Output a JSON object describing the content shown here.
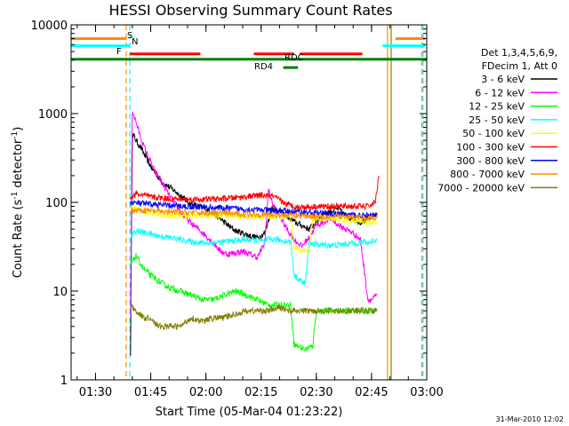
{
  "chart_data": {
    "type": "line",
    "title": "HESSI Observing Summary Count Rates",
    "xlabel": "Start Time (05-Mar-04 01:23:22)",
    "ylabel": "Count Rate (s",
    "ylabel_sup1": "-1",
    "ylabel_mid": " detector",
    "ylabel_sup2": "-1",
    "ylabel_end": ")",
    "y_scale": "log",
    "ylim": [
      1,
      10000
    ],
    "xlim": [
      "01:23:22",
      "03:00:00"
    ],
    "x_ticks": [
      "01:30",
      "01:45",
      "02:00",
      "02:15",
      "02:30",
      "02:45",
      "03:00"
    ],
    "y_ticks": [
      "1",
      "10",
      "100",
      "1000",
      "10000"
    ],
    "footer": "31-Mar-2010 12:02",
    "legend": {
      "header1": "Det 1,3,4,5,6,9,",
      "header2": "FDecim 1, Att 0",
      "placement": "right"
    },
    "series": [
      {
        "name": "3 - 6 keV",
        "color": "#000000",
        "x": [
          "01:39:30",
          "01:40:00",
          "01:41:00",
          "01:42:30",
          "01:44:00",
          "01:46:00",
          "01:48:00",
          "01:50:00",
          "01:52:00",
          "01:54:00",
          "01:56:00",
          "01:58:00",
          "02:00:00",
          "02:02:00",
          "02:04:00",
          "02:06:00",
          "02:08:00",
          "02:10:00",
          "02:12:00",
          "02:14:00",
          "02:16:00",
          "02:18:00",
          "02:20:00",
          "02:22:00",
          "02:24:00",
          "02:26:00",
          "02:28:00",
          "02:30:00",
          "02:32:00",
          "02:34:00",
          "02:36:00",
          "02:38:00",
          "02:40:00",
          "02:42:00",
          "02:44:00",
          "02:45:00",
          "02:46:30"
        ],
        "y": [
          2,
          600,
          500,
          400,
          300,
          220,
          170,
          150,
          130,
          110,
          95,
          90,
          85,
          75,
          65,
          55,
          48,
          45,
          42,
          40,
          45,
          90,
          80,
          70,
          60,
          55,
          50,
          60,
          75,
          80,
          85,
          70,
          65,
          60,
          65,
          70,
          75
        ]
      },
      {
        "name": "6 - 12 keV",
        "color": "#ff00ff",
        "x": [
          "01:39:30",
          "01:40:00",
          "01:41:00",
          "01:42:30",
          "01:44:00",
          "01:46:00",
          "01:48:00",
          "01:50:00",
          "01:52:00",
          "01:54:00",
          "01:56:00",
          "01:58:00",
          "02:00:00",
          "02:02:00",
          "02:04:00",
          "02:06:00",
          "02:08:00",
          "02:10:00",
          "02:12:00",
          "02:14:00",
          "02:16:00",
          "02:17:00",
          "02:18:00",
          "02:20:00",
          "02:22:00",
          "02:24:00",
          "02:26:00",
          "02:28:00",
          "02:30:00",
          "02:32:00",
          "02:34:00",
          "02:36:00",
          "02:38:00",
          "02:40:00",
          "02:42:00",
          "02:44:00",
          "02:45:00",
          "02:46:30"
        ],
        "y": [
          5,
          1100,
          800,
          500,
          350,
          230,
          170,
          120,
          90,
          70,
          58,
          50,
          42,
          35,
          28,
          26,
          27,
          28,
          26,
          24,
          35,
          140,
          100,
          70,
          50,
          38,
          32,
          40,
          55,
          60,
          65,
          55,
          50,
          45,
          38,
          8,
          8,
          9
        ]
      },
      {
        "name": "12 - 25 keV",
        "color": "#00ff00",
        "x": [
          "01:39:30",
          "01:41:00",
          "01:43:00",
          "01:45:00",
          "01:47:00",
          "01:50:00",
          "01:53:00",
          "01:56:00",
          "01:59:00",
          "02:02:00",
          "02:05:00",
          "02:08:00",
          "02:11:00",
          "02:14:00",
          "02:17:00",
          "02:19:00",
          "02:21:00",
          "02:23:00",
          "02:24:00",
          "02:27:00",
          "02:29:00",
          "02:30:00",
          "02:33:00",
          "02:36:00",
          "02:39:00",
          "02:42:00",
          "02:44:00",
          "02:45:00",
          "02:46:30"
        ],
        "y": [
          20,
          25,
          18,
          15,
          13,
          11,
          10,
          9,
          8,
          8,
          9,
          10,
          9,
          8,
          7,
          7,
          7,
          7,
          2.5,
          2.2,
          2.4,
          6,
          6,
          6,
          6,
          6,
          6,
          6,
          6
        ]
      },
      {
        "name": "25 - 50 keV",
        "color": "#00ffff",
        "x": [
          "01:39:30",
          "01:41:00",
          "01:44:00",
          "01:47:00",
          "01:50:00",
          "01:53:00",
          "01:56:00",
          "01:59:00",
          "02:02:00",
          "02:05:00",
          "02:08:00",
          "02:11:00",
          "02:14:00",
          "02:16:00",
          "02:17:00",
          "02:19:00",
          "02:21:00",
          "02:23:00",
          "02:24:00",
          "02:27:00",
          "02:28:00",
          "02:29:00",
          "02:32:00",
          "02:35:00",
          "02:38:00",
          "02:41:00",
          "02:43:00",
          "02:44:00",
          "02:45:00",
          "02:46:30"
        ],
        "y": [
          40,
          48,
          45,
          42,
          40,
          38,
          36,
          35,
          35,
          36,
          37,
          38,
          37,
          36,
          38,
          38,
          37,
          36,
          15,
          12,
          35,
          34,
          33,
          33,
          34,
          35,
          36,
          35,
          36,
          38
        ]
      },
      {
        "name": "50 - 100 keV",
        "color": "#ffff00",
        "x": [
          "01:39:30",
          "01:41:00",
          "01:45:00",
          "01:50:00",
          "01:55:00",
          "02:00:00",
          "02:05:00",
          "02:10:00",
          "02:15:00",
          "02:20:00",
          "02:23:00",
          "02:24:00",
          "02:28:00",
          "02:29:00",
          "02:35:00",
          "02:40:00",
          "02:45:00",
          "02:46:30"
        ],
        "y": [
          90,
          85,
          75,
          72,
          70,
          70,
          72,
          70,
          68,
          70,
          70,
          30,
          28,
          65,
          65,
          62,
          60,
          60
        ]
      },
      {
        "name": "100 - 300 keV",
        "color": "#ff0000",
        "x": [
          "01:39:30",
          "01:41:00",
          "01:45:00",
          "01:50:00",
          "01:55:00",
          "02:00:00",
          "02:05:00",
          "02:10:00",
          "02:15:00",
          "02:18:00",
          "02:22:00",
          "02:25:00",
          "02:30:00",
          "02:35:00",
          "02:40:00",
          "02:44:00",
          "02:46:00",
          "02:47:00"
        ],
        "y": [
          110,
          125,
          115,
          110,
          108,
          108,
          110,
          115,
          120,
          118,
          95,
          88,
          90,
          90,
          90,
          90,
          100,
          200
        ]
      },
      {
        "name": "300 - 800 keV",
        "color": "#0000ff",
        "x": [
          "01:39:30",
          "01:41:00",
          "01:45:00",
          "01:50:00",
          "01:55:00",
          "02:00:00",
          "02:05:00",
          "02:10:00",
          "02:15:00",
          "02:20:00",
          "02:25:00",
          "02:30:00",
          "02:35:00",
          "02:40:00",
          "02:45:00",
          "02:46:30"
        ],
        "y": [
          100,
          98,
          95,
          92,
          90,
          88,
          86,
          84,
          82,
          80,
          78,
          76,
          74,
          72,
          70,
          70
        ]
      },
      {
        "name": "800 - 7000 keV",
        "color": "#ff8c00",
        "x": [
          "01:39:30",
          "01:41:00",
          "01:45:00",
          "01:50:00",
          "01:55:00",
          "02:00:00",
          "02:05:00",
          "02:10:00",
          "02:15:00",
          "02:20:00",
          "02:25:00",
          "02:30:00",
          "02:35:00",
          "02:40:00",
          "02:45:00",
          "02:46:30"
        ],
        "y": [
          80,
          82,
          80,
          78,
          77,
          76,
          75,
          74,
          73,
          72,
          71,
          70,
          69,
          68,
          67,
          66
        ]
      },
      {
        "name": "7000 - 20000 keV",
        "color": "#808000",
        "x": [
          "01:39:30",
          "01:41:00",
          "01:43:00",
          "01:45:00",
          "01:47:00",
          "01:50:00",
          "01:53:00",
          "01:56:00",
          "01:59:00",
          "02:02:00",
          "02:05:00",
          "02:08:00",
          "02:11:00",
          "02:14:00",
          "02:17:00",
          "02:20:00",
          "02:23:00",
          "02:26:00",
          "02:29:00",
          "02:32:00",
          "02:35:00",
          "02:38:00",
          "02:41:00",
          "02:44:00",
          "02:46:30"
        ],
        "y": [
          7,
          6,
          5,
          5,
          4,
          4,
          4,
          5,
          4.5,
          5,
          5,
          5.5,
          6,
          6,
          6,
          6.5,
          6,
          6,
          6,
          6,
          6,
          6,
          6,
          6,
          6
        ]
      }
    ],
    "vertical_markers": [
      {
        "x": "01:38:20",
        "color": "#ff8c00",
        "style": "dashed"
      },
      {
        "x": "01:39:20",
        "color": "#00ffff",
        "style": "dashed"
      },
      {
        "x": "02:49:20",
        "color": "#ff8c00",
        "style": "solid"
      },
      {
        "x": "02:50:20",
        "color": "#808000",
        "style": "solid"
      },
      {
        "x": "02:58:40",
        "color": "#ff8c00",
        "style": "dashed"
      },
      {
        "x": "02:59:00",
        "color": "#00ffff",
        "style": "dashed"
      }
    ],
    "flag_bars": [
      {
        "label": "S",
        "color": "#ff8c00",
        "level": 7000,
        "segments": [
          [
            "01:23:22",
            "01:38:20"
          ],
          [
            "02:51:30",
            "02:59:30"
          ]
        ]
      },
      {
        "label": "N",
        "color": "#00ffff",
        "level": 5800,
        "segments": [
          [
            "01:23:22",
            "01:39:20"
          ],
          [
            "02:48:00",
            "02:59:30"
          ]
        ]
      },
      {
        "label": "F",
        "color": "#ff0000",
        "level": 4700,
        "segments": [
          [
            "01:39:20",
            "01:58:30"
          ],
          [
            "02:13:00",
            "02:24:00"
          ],
          [
            "02:25:30",
            "02:42:30"
          ]
        ]
      },
      {
        "label": "RDC",
        "color": "#008000",
        "level": 4100,
        "segments": [
          [
            "01:23:22",
            "03:00:00"
          ]
        ]
      },
      {
        "label": "RD4",
        "color": "#008000",
        "level": 3300,
        "segments": [
          [
            "02:21:00",
            "02:25:00"
          ]
        ]
      }
    ]
  }
}
